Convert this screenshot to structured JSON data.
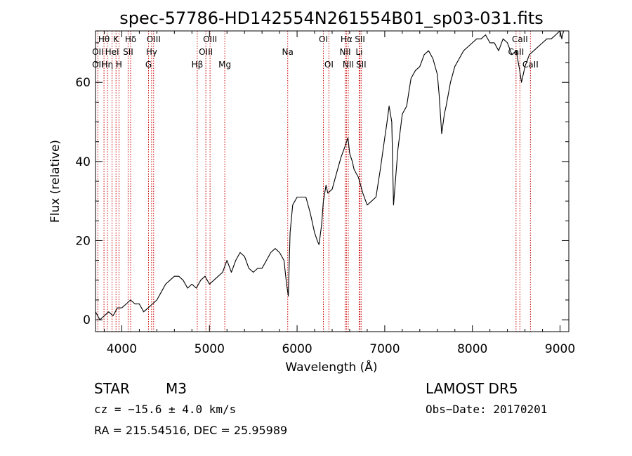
{
  "chart_data": {
    "type": "line",
    "title": "spec-57786-HD142554N261554B01_sp03-031.fits",
    "xlabel": "Wavelength (Å)",
    "ylabel": "Flux (relative)",
    "xlim": [
      3700,
      9100
    ],
    "ylim": [
      -3,
      73
    ],
    "xticks": [
      4000,
      5000,
      6000,
      7000,
      8000,
      9000
    ],
    "yticks": [
      0,
      20,
      40,
      60
    ],
    "grid": false,
    "series": [
      {
        "color": "#000000",
        "x": [
          3700,
          3750,
          3800,
          3850,
          3900,
          3950,
          4000,
          4050,
          4100,
          4150,
          4200,
          4250,
          4300,
          4350,
          4400,
          4450,
          4500,
          4550,
          4600,
          4650,
          4700,
          4750,
          4800,
          4850,
          4900,
          4950,
          5000,
          5050,
          5100,
          5150,
          5200,
          5250,
          5300,
          5350,
          5400,
          5450,
          5500,
          5550,
          5600,
          5650,
          5700,
          5750,
          5800,
          5850,
          5880,
          5900,
          5920,
          5950,
          6000,
          6050,
          6100,
          6150,
          6200,
          6230,
          6250,
          6280,
          6300,
          6330,
          6350,
          6400,
          6450,
          6500,
          6550,
          6580,
          6600,
          6630,
          6650,
          6700,
          6750,
          6800,
          6850,
          6900,
          6950,
          7000,
          7020,
          7050,
          7080,
          7100,
          7150,
          7200,
          7250,
          7300,
          7350,
          7400,
          7450,
          7500,
          7550,
          7600,
          7620,
          7650,
          7680,
          7700,
          7750,
          7800,
          7850,
          7900,
          7950,
          8000,
          8050,
          8100,
          8150,
          8200,
          8250,
          8300,
          8350,
          8400,
          8450,
          8500,
          8540,
          8560,
          8600,
          8650,
          8700,
          8750,
          8800,
          8850,
          8900,
          8950,
          9000,
          9020,
          9040
        ],
        "y": [
          2,
          0,
          1,
          2,
          1,
          3,
          3,
          4,
          5,
          4,
          4,
          2,
          3,
          4,
          5,
          7,
          9,
          10,
          11,
          11,
          10,
          8,
          9,
          8,
          10,
          11,
          9,
          10,
          11,
          12,
          15,
          12,
          15,
          17,
          16,
          13,
          12,
          13,
          13,
          15,
          17,
          18,
          17,
          15,
          9,
          6,
          22,
          29,
          31,
          31,
          31,
          27,
          22,
          20,
          19,
          24,
          30,
          34,
          32,
          33,
          37,
          41,
          44,
          46,
          42,
          40,
          38,
          36,
          32,
          29,
          30,
          31,
          38,
          46,
          49,
          54,
          50,
          29,
          43,
          52,
          54,
          61,
          63,
          64,
          67,
          68,
          66,
          62,
          57,
          47,
          52,
          54,
          60,
          64,
          66,
          68,
          69,
          70,
          71,
          71,
          72,
          70,
          70,
          68,
          71,
          70,
          67,
          68,
          63,
          60,
          64,
          67,
          68,
          69,
          70,
          71,
          71,
          72,
          73,
          71,
          73
        ]
      }
    ],
    "lines": [
      {
        "label": "Hθ",
        "wl": 3797,
        "row": 0
      },
      {
        "label": "OII",
        "wl": 3727,
        "row": 1
      },
      {
        "label": "OII",
        "wl": 3727,
        "row": 2
      },
      {
        "label": "K",
        "wl": 3934,
        "row": 0
      },
      {
        "label": "HeI",
        "wl": 3889,
        "row": 1
      },
      {
        "label": "Hη",
        "wl": 3835,
        "row": 2
      },
      {
        "label": "H",
        "wl": 3968,
        "row": 2
      },
      {
        "label": "Hδ",
        "wl": 4101,
        "row": 0
      },
      {
        "label": "SII",
        "wl": 4072,
        "row": 1
      },
      {
        "label": "OIII",
        "wl": 4363,
        "row": 0
      },
      {
        "label": "Hγ",
        "wl": 4340,
        "row": 1
      },
      {
        "label": "G",
        "wl": 4305,
        "row": 2
      },
      {
        "label": "OIII",
        "wl": 5007,
        "row": 0
      },
      {
        "label": "OIII",
        "wl": 4959,
        "row": 1
      },
      {
        "label": "Hβ",
        "wl": 4861,
        "row": 2
      },
      {
        "label": "Mg",
        "wl": 5175,
        "row": 2
      },
      {
        "label": "Na",
        "wl": 5893,
        "row": 1
      },
      {
        "label": "OI",
        "wl": 6300,
        "row": 0
      },
      {
        "label": "OI",
        "wl": 6363,
        "row": 2
      },
      {
        "label": "Hα",
        "wl": 6563,
        "row": 0
      },
      {
        "label": "SII",
        "wl": 6717,
        "row": 0
      },
      {
        "label": "NII",
        "wl": 6548,
        "row": 1
      },
      {
        "label": "Li",
        "wl": 6708,
        "row": 1
      },
      {
        "label": "NII",
        "wl": 6584,
        "row": 2
      },
      {
        "label": "SII",
        "wl": 6731,
        "row": 2
      },
      {
        "label": "CaII",
        "wl": 8542,
        "row": 0
      },
      {
        "label": "CaII",
        "wl": 8498,
        "row": 1
      },
      {
        "label": "CaII",
        "wl": 8662,
        "row": 2
      }
    ]
  },
  "info": {
    "object_class": "STAR",
    "subclass": "M3",
    "survey": "LAMOST  DR5",
    "cz": "cz = −15.6 ± 4.0 km/s",
    "obs_date": "Obs−Date: 20170201",
    "coords": "RA = 215.54516, DEC =  25.95989"
  },
  "colors": {
    "line_marker": "#cc0000",
    "spectrum": "#000000"
  }
}
